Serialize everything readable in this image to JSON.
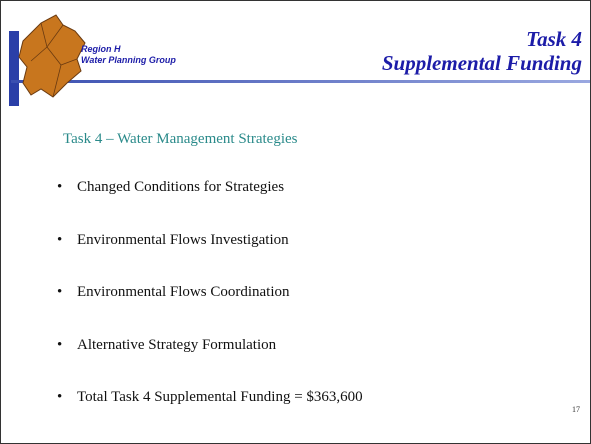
{
  "header": {
    "org_line1": "Region H",
    "org_line2": "Water Planning Group",
    "title_line1": "Task 4",
    "title_line2": "Supplemental Funding"
  },
  "subtitle": "Task 4 – Water Management Strategies",
  "bullets": [
    "Changed Conditions for Strategies",
    "Environmental Flows Investigation",
    "Environmental Flows Coordination",
    "Alternative Strategy Formulation",
    "Total Task 4 Supplemental Funding = $363,600"
  ],
  "page_number": "17"
}
